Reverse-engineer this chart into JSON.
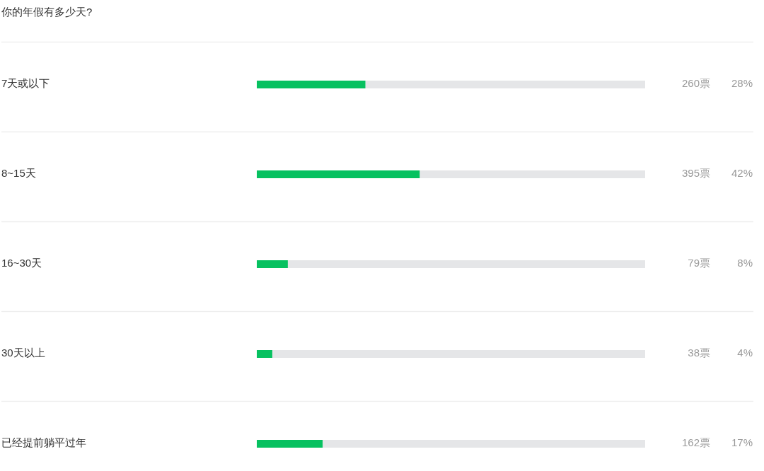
{
  "chart_data": {
    "type": "bar",
    "orientation": "horizontal",
    "stacked": true,
    "title": "你的年假有多少天?",
    "categories": [
      "7天或以下",
      "8~15天",
      "16~30天",
      "30天以上",
      "已经提前躺平过年"
    ],
    "series": [
      {
        "color": "#07c160",
        "values": [
          28,
          42,
          8,
          4,
          17
        ],
        "value_labels": [
          "28%",
          "42%",
          "8%",
          "4%",
          "17%"
        ]
      },
      {
        "color": "#e5e6e8",
        "values": [
          72,
          58,
          92,
          96,
          83
        ]
      }
    ],
    "xlim": [
      0,
      100
    ],
    "tick_labels": "y",
    "grid": "y",
    "annotations": [
      "260票",
      "395票",
      "79票",
      "38票",
      "162票"
    ]
  }
}
